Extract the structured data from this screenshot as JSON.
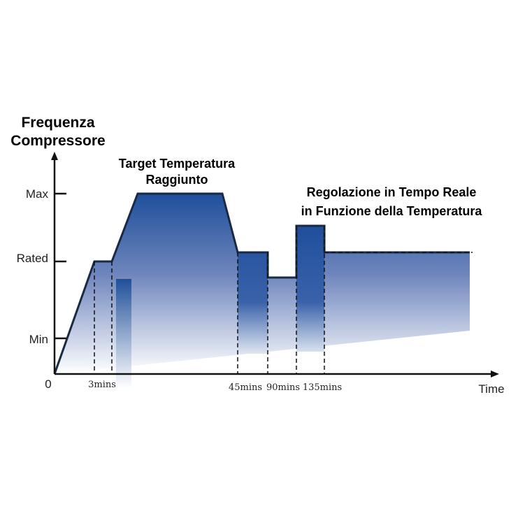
{
  "title": [
    "Frequenza",
    "Compressore"
  ],
  "annotations": {
    "target": [
      "Target Temperatura",
      "Raggiunto"
    ],
    "regulation": [
      "Regolazione in Tempo Reale",
      "in Funzione della Temperatura"
    ]
  },
  "y_labels": [
    "Max",
    "Rated",
    "Min",
    "0"
  ],
  "x_labels": [
    "3mins",
    "45mins",
    "90mins",
    "135mins"
  ],
  "x_axis_label": "Time"
}
